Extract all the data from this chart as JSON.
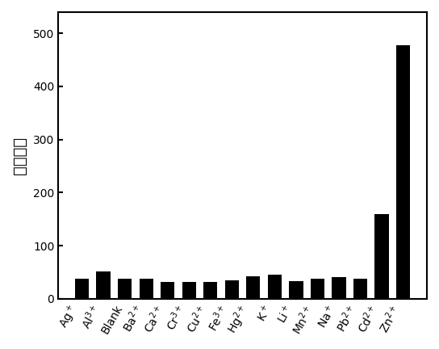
{
  "categories": [
    "Ag$^+$",
    "Al$^{3+}$",
    "Blank",
    "Ba$^{2+}$",
    "Ca$^{2+}$",
    "Cr$^{3+}$",
    "Cu$^{2+}$",
    "Fe$^{3+}$",
    "Hg$^{2+}$",
    "K$^+$",
    "Li$^+$",
    "Mn$^{2+}$",
    "Na$^+$",
    "Pb$^{2+}$",
    "Cd$^{2+}$",
    "Zn$^{2+}$"
  ],
  "values": [
    38,
    52,
    38,
    38,
    32,
    32,
    32,
    35,
    42,
    45,
    33,
    38,
    40,
    38,
    160,
    478
  ],
  "bar_color": "#000000",
  "ylabel": "荧光强度",
  "ylim": [
    0,
    540
  ],
  "yticks": [
    0,
    100,
    200,
    300,
    400,
    500
  ],
  "background_color": "#ffffff",
  "bar_width": 0.65,
  "tick_fontsize": 10,
  "ylabel_fontsize": 14,
  "label_rotation": 60
}
